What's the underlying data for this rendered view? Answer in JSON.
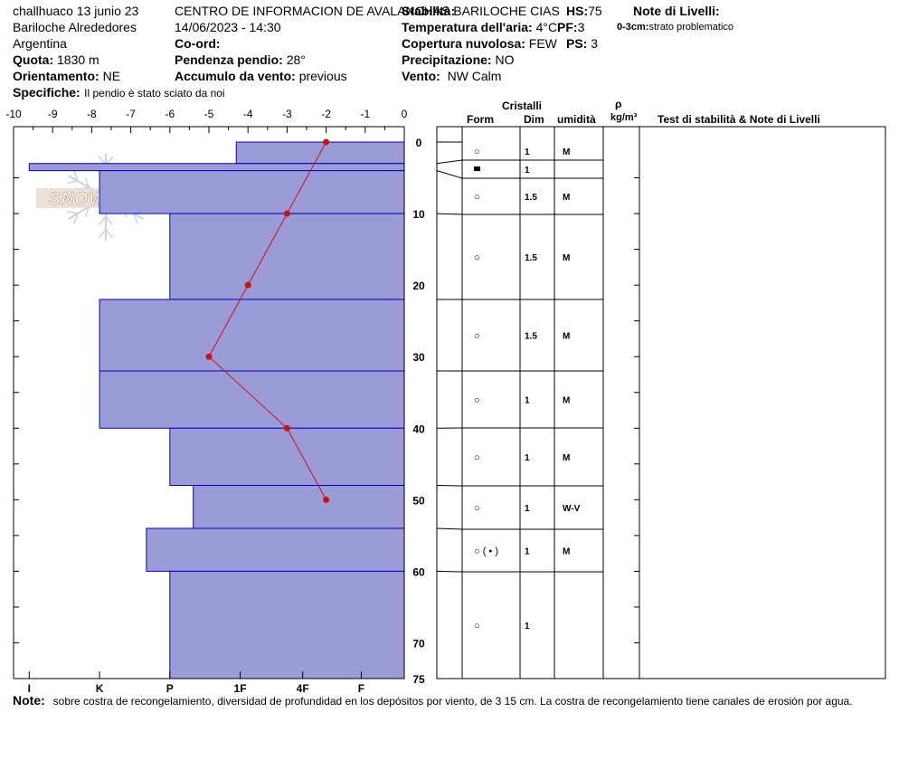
{
  "header": {
    "line1": "challhuaco 13 junio 23",
    "line2": "Bariloche Alrededores",
    "line3": "Argentina",
    "quota_label": "Quota:",
    "quota_value": "1830 m",
    "orient_label": "Orientamento:",
    "orient_value": "NE",
    "center_title": "CENTRO DE INFORMACION DE AVALANCHAS BARILOCHE CIAS",
    "datetime": "14/06/2023 - 14:30",
    "coord_label": "Co-ord:",
    "slope_label": "Pendenza pendio:",
    "slope_value": "28°",
    "wind_acc_label": "Accumulo da vento:",
    "wind_acc_value": "previous",
    "stability_label": "Stabilità:",
    "air_temp_label": "Temperatura dell'aria:",
    "air_temp_value": "4°C",
    "cloud_label": "Copertura nuvolosa:",
    "cloud_value": "FEW",
    "precip_label": "Precipitazione:",
    "precip_value": "NO",
    "wind_label": "Vento:",
    "wind_value": "NW Calm",
    "hs_label": "HS:",
    "hs_value": "75",
    "pf_label": "PF:",
    "pf_value": "3",
    "ps_label": "PS:",
    "ps_value": "3",
    "notes_title": "Note di Livelli:",
    "note1_label": "0-3cm:",
    "note1_text": "strato problematico",
    "spec_label": "Specifiche:",
    "spec_value": "Il pendio è stato sciato da noi"
  },
  "watermark": "SNOWPILOT",
  "table_headers": {
    "cristalli": "Cristalli",
    "form": "Form",
    "dim": "Dim",
    "umidita": "umidità",
    "rho": "ρ",
    "rho_unit": "kg/m³",
    "stability_notes": "Test di stabilità & Note di Livelli"
  },
  "footer": {
    "label": "Note:",
    "text": "sobre costra de recongelamiento, diversidad de profundidad en los depósitos por viento, de 3  15 cm. La costra de recongelamiento tiene canales de erosión por agua."
  },
  "colors": {
    "hardness_fill": "#9b9bd7",
    "hardness_stroke": "#0000cc",
    "temperature": "#cc1111"
  },
  "chart_data": {
    "type": "snow_profile",
    "temperature_axis": {
      "label_ticks": [
        -10,
        -9,
        -8,
        -7,
        -6,
        -5,
        -4,
        -3,
        -2,
        -1,
        0
      ],
      "range": [
        -10,
        0
      ]
    },
    "depth_axis": {
      "range": [
        0,
        75
      ],
      "labels": [
        "0",
        "10",
        "20",
        "30",
        "40",
        "50",
        "60",
        "70",
        "75"
      ]
    },
    "hardness_axis": {
      "labels": [
        "I",
        "K",
        "P",
        "1F",
        "4F",
        "F"
      ],
      "label_values": [
        -9.6,
        -7.8,
        -6.0,
        -4.2,
        -2.6,
        -1.1
      ]
    },
    "layers": [
      {
        "top": 0,
        "bottom": 3,
        "hardness": -4.3,
        "form": "○",
        "dim": "1",
        "moisture": "M"
      },
      {
        "top": 3,
        "bottom": 4,
        "hardness": -9.6,
        "form": "■",
        "dim": "1",
        "moisture": ""
      },
      {
        "top": 4,
        "bottom": 10,
        "hardness": -7.8,
        "form": "○",
        "dim": "1.5",
        "moisture": "M"
      },
      {
        "top": 10,
        "bottom": 22,
        "hardness": -6.0,
        "form": "○",
        "dim": "1.5",
        "moisture": "M"
      },
      {
        "top": 22,
        "bottom": 32,
        "hardness": -7.8,
        "form": "○",
        "dim": "1.5",
        "moisture": "M"
      },
      {
        "top": 32,
        "bottom": 40,
        "hardness": -7.8,
        "form": "○",
        "dim": "1",
        "moisture": "M"
      },
      {
        "top": 40,
        "bottom": 48,
        "hardness": -6.0,
        "form": "○",
        "dim": "1",
        "moisture": "M"
      },
      {
        "top": 48,
        "bottom": 54,
        "hardness": -5.4,
        "form": "○",
        "dim": "1",
        "moisture": "W-V"
      },
      {
        "top": 54,
        "bottom": 60,
        "hardness": -6.6,
        "form": "○ ( • )",
        "dim": "1",
        "moisture": "M"
      },
      {
        "top": 60,
        "bottom": 75,
        "hardness": -6.0,
        "form": "○",
        "dim": "1",
        "moisture": ""
      }
    ],
    "temperature_profile": [
      {
        "depth": 0,
        "temp": -2.0
      },
      {
        "depth": 10,
        "temp": -3.0
      },
      {
        "depth": 20,
        "temp": -4.0
      },
      {
        "depth": 30,
        "temp": -5.0
      },
      {
        "depth": 40,
        "temp": -3.0
      },
      {
        "depth": 50,
        "temp": -2.0
      }
    ]
  }
}
